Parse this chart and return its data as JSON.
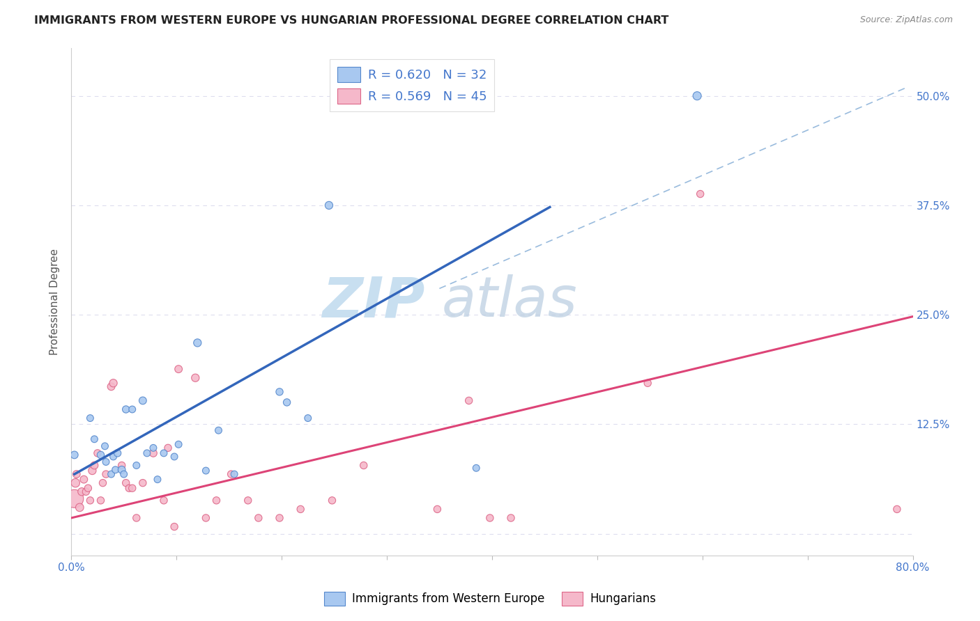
{
  "title": "IMMIGRANTS FROM WESTERN EUROPE VS HUNGARIAN PROFESSIONAL DEGREE CORRELATION CHART",
  "source": "Source: ZipAtlas.com",
  "ylabel": "Professional Degree",
  "xlim": [
    0.0,
    0.8
  ],
  "ylim": [
    -0.025,
    0.555
  ],
  "x_ticks": [
    0.0,
    0.1,
    0.2,
    0.3,
    0.4,
    0.5,
    0.6,
    0.7,
    0.8
  ],
  "x_tick_labels": [
    "0.0%",
    "",
    "",
    "",
    "",
    "",
    "",
    "",
    "80.0%"
  ],
  "y_ticks": [
    0.0,
    0.125,
    0.25,
    0.375,
    0.5
  ],
  "y_tick_labels": [
    "",
    "12.5%",
    "25.0%",
    "37.5%",
    "50.0%"
  ],
  "blue_fill_color": "#a8c8f0",
  "blue_edge_color": "#5588cc",
  "pink_fill_color": "#f5b8ca",
  "pink_edge_color": "#dd6688",
  "blue_line_color": "#3366bb",
  "pink_line_color": "#dd4477",
  "dashed_line_color": "#99bbdd",
  "legend_r1": "R = 0.620",
  "legend_n1": "N = 32",
  "legend_r2": "R = 0.569",
  "legend_n2": "N = 45",
  "watermark_zip": "ZIP",
  "watermark_atlas": "atlas",
  "blue_scatter_x": [
    0.003,
    0.018,
    0.022,
    0.028,
    0.032,
    0.033,
    0.038,
    0.04,
    0.042,
    0.044,
    0.048,
    0.05,
    0.052,
    0.058,
    0.062,
    0.068,
    0.072,
    0.078,
    0.082,
    0.088,
    0.098,
    0.102,
    0.12,
    0.128,
    0.14,
    0.155,
    0.198,
    0.205,
    0.225,
    0.245,
    0.385,
    0.595
  ],
  "blue_scatter_y": [
    0.09,
    0.132,
    0.108,
    0.09,
    0.1,
    0.082,
    0.068,
    0.088,
    0.073,
    0.092,
    0.073,
    0.068,
    0.142,
    0.142,
    0.078,
    0.152,
    0.092,
    0.098,
    0.062,
    0.092,
    0.088,
    0.102,
    0.218,
    0.072,
    0.118,
    0.068,
    0.162,
    0.15,
    0.132,
    0.375,
    0.075,
    0.5
  ],
  "blue_scatter_sizes": [
    60,
    50,
    50,
    55,
    50,
    50,
    50,
    50,
    50,
    55,
    60,
    50,
    55,
    50,
    50,
    60,
    50,
    50,
    50,
    50,
    50,
    50,
    65,
    50,
    50,
    50,
    55,
    55,
    50,
    65,
    50,
    75
  ],
  "pink_scatter_x": [
    0.003,
    0.004,
    0.005,
    0.008,
    0.01,
    0.012,
    0.014,
    0.016,
    0.018,
    0.02,
    0.022,
    0.025,
    0.028,
    0.03,
    0.033,
    0.038,
    0.04,
    0.048,
    0.052,
    0.055,
    0.058,
    0.062,
    0.068,
    0.078,
    0.088,
    0.092,
    0.098,
    0.102,
    0.118,
    0.128,
    0.138,
    0.152,
    0.168,
    0.178,
    0.198,
    0.218,
    0.248,
    0.278,
    0.348,
    0.378,
    0.398,
    0.418,
    0.548,
    0.598,
    0.785
  ],
  "pink_scatter_y": [
    0.04,
    0.058,
    0.068,
    0.03,
    0.048,
    0.062,
    0.048,
    0.052,
    0.038,
    0.072,
    0.078,
    0.092,
    0.038,
    0.058,
    0.068,
    0.168,
    0.172,
    0.078,
    0.058,
    0.052,
    0.052,
    0.018,
    0.058,
    0.092,
    0.038,
    0.098,
    0.008,
    0.188,
    0.178,
    0.018,
    0.038,
    0.068,
    0.038,
    0.018,
    0.018,
    0.028,
    0.038,
    0.078,
    0.028,
    0.152,
    0.018,
    0.018,
    0.172,
    0.388,
    0.028
  ],
  "pink_scatter_sizes": [
    350,
    80,
    60,
    70,
    65,
    60,
    55,
    55,
    55,
    65,
    60,
    55,
    55,
    55,
    55,
    60,
    65,
    55,
    55,
    55,
    55,
    55,
    55,
    60,
    55,
    55,
    55,
    60,
    65,
    55,
    55,
    55,
    55,
    55,
    55,
    55,
    55,
    55,
    55,
    55,
    55,
    55,
    55,
    55,
    55
  ],
  "blue_line_x": [
    0.003,
    0.455
  ],
  "blue_line_y": [
    0.068,
    0.373
  ],
  "pink_line_x": [
    0.0,
    0.8
  ],
  "pink_line_y": [
    0.018,
    0.248
  ],
  "dashed_line_x": [
    0.35,
    0.795
  ],
  "dashed_line_y": [
    0.28,
    0.51
  ],
  "background_color": "#ffffff",
  "grid_color": "#ddddee"
}
